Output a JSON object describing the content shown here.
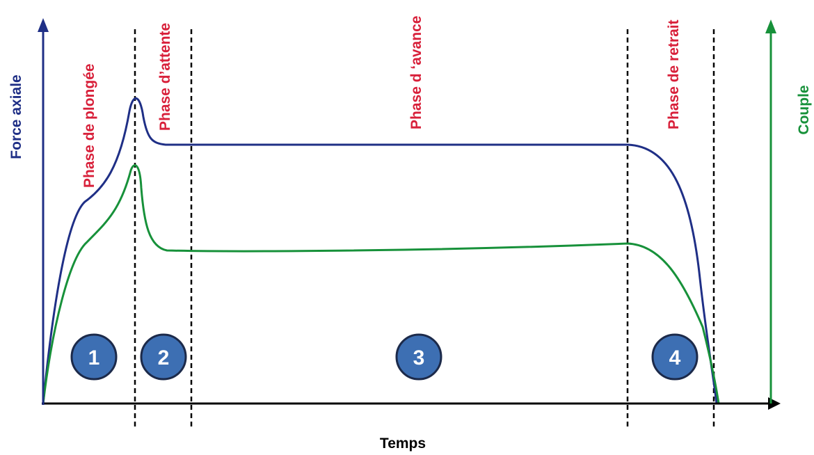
{
  "chart_data": {
    "type": "line",
    "title": "",
    "xlabel": "Temps",
    "ylabel_left": "Force axiale",
    "ylabel_right": "Couple",
    "phases": [
      {
        "number": "1",
        "label": "Phase de plongée"
      },
      {
        "number": "2",
        "label": "Phase d’attente"
      },
      {
        "number": "3",
        "label": "Phase d ‘avance"
      },
      {
        "number": "4",
        "label": "Phase de retrait"
      }
    ],
    "series": [
      {
        "name": "Force axiale",
        "color": "#1f2f86"
      },
      {
        "name": "Couple",
        "color": "#17913a"
      }
    ]
  },
  "colors": {
    "axis": "#000000",
    "phase_label": "#d8203a",
    "circle_fill": "#3d6fb3",
    "circle_stroke": "#1c2a4a"
  }
}
